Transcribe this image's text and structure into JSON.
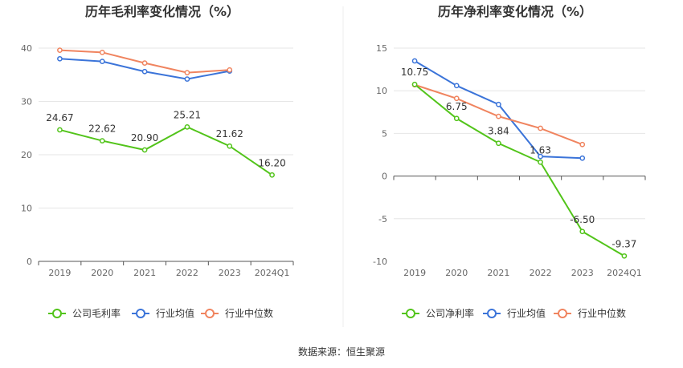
{
  "chart_data": [
    {
      "type": "line",
      "title": "历年毛利率变化情况（%）",
      "categories": [
        "2019",
        "2020",
        "2021",
        "2022",
        "2023",
        "2024Q1"
      ],
      "ylim": [
        0,
        40
      ],
      "yticks": [
        "0",
        "10",
        "20",
        "30",
        "40"
      ],
      "grid": true,
      "legend_position": "bottom",
      "series": [
        {
          "name": "公司毛利率",
          "color": "#52c41a",
          "values": [
            24.67,
            22.62,
            20.9,
            25.21,
            21.62,
            16.2
          ],
          "labels": [
            "24.67",
            "22.62",
            "20.90",
            "25.21",
            "21.62",
            "16.20"
          ]
        },
        {
          "name": "行业均值",
          "color": "#3b74d9",
          "values": [
            38.0,
            37.5,
            35.6,
            34.2,
            35.7,
            null
          ]
        },
        {
          "name": "行业中位数",
          "color": "#f0845f",
          "values": [
            39.6,
            39.2,
            37.2,
            35.4,
            35.9,
            null
          ]
        }
      ]
    },
    {
      "type": "line",
      "title": "历年净利率变化情况（%）",
      "categories": [
        "2019",
        "2020",
        "2021",
        "2022",
        "2023",
        "2024Q1"
      ],
      "ylim": [
        -10,
        15
      ],
      "yticks": [
        "-10",
        "-5",
        "0",
        "5",
        "10",
        "15"
      ],
      "grid": true,
      "legend_position": "bottom",
      "series": [
        {
          "name": "公司净利率",
          "color": "#52c41a",
          "values": [
            10.75,
            6.75,
            3.84,
            1.63,
            -6.5,
            -9.37
          ],
          "labels": [
            "10.75",
            "6.75",
            "3.84",
            "1.63",
            "-6.50",
            "-9.37"
          ]
        },
        {
          "name": "行业均值",
          "color": "#3b74d9",
          "values": [
            13.5,
            10.6,
            8.4,
            2.3,
            2.1,
            null
          ]
        },
        {
          "name": "行业中位数",
          "color": "#f0845f",
          "values": [
            10.7,
            9.1,
            7.0,
            5.6,
            3.7,
            null
          ]
        }
      ]
    }
  ],
  "source": "数据来源：恒生聚源"
}
